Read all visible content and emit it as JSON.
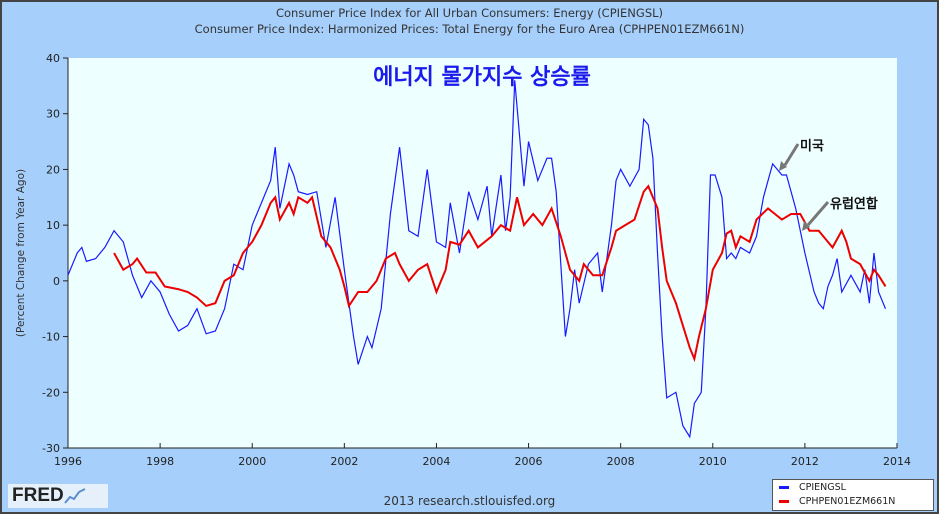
{
  "chart_data": {
    "type": "line",
    "title": "Consumer Price Index for All Urban Consumers: Energy (CPIENGSL)",
    "subtitle": "Consumer Price Index: Harmonized Prices: Total Energy for the Euro Area (CPHPEN01EZM661N)",
    "annotation_title": "에너지 물가지수 상승률",
    "ylabel": "(Percent Change from Year Ago)",
    "xlim": [
      1996,
      2014
    ],
    "ylim": [
      -30,
      40
    ],
    "xticks": [
      "1996",
      "1998",
      "2000",
      "2002",
      "2004",
      "2006",
      "2008",
      "2010",
      "2012",
      "2014"
    ],
    "yticks": [
      "40",
      "30",
      "20",
      "10",
      "0",
      "-10",
      "-20",
      "-30"
    ],
    "legend_position": "bottom-right",
    "series": [
      {
        "name": "CPIENGSL",
        "label": "미국",
        "color": "#1a1aff",
        "points": [
          [
            1996.0,
            1
          ],
          [
            1996.2,
            5
          ],
          [
            1996.3,
            6
          ],
          [
            1996.4,
            3.5
          ],
          [
            1996.6,
            4
          ],
          [
            1996.8,
            6
          ],
          [
            1997.0,
            9
          ],
          [
            1997.2,
            7
          ],
          [
            1997.4,
            1
          ],
          [
            1997.6,
            -3
          ],
          [
            1997.8,
            0
          ],
          [
            1998.0,
            -2
          ],
          [
            1998.2,
            -6
          ],
          [
            1998.4,
            -9
          ],
          [
            1998.6,
            -8
          ],
          [
            1998.8,
            -5
          ],
          [
            1999.0,
            -9.5
          ],
          [
            1999.2,
            -9
          ],
          [
            1999.4,
            -5
          ],
          [
            1999.6,
            3
          ],
          [
            1999.8,
            2
          ],
          [
            2000.0,
            10
          ],
          [
            2000.2,
            14
          ],
          [
            2000.4,
            18
          ],
          [
            2000.5,
            24
          ],
          [
            2000.6,
            13
          ],
          [
            2000.8,
            21
          ],
          [
            2000.9,
            19
          ],
          [
            2001.0,
            16
          ],
          [
            2001.2,
            15.5
          ],
          [
            2001.4,
            16
          ],
          [
            2001.6,
            6
          ],
          [
            2001.8,
            15
          ],
          [
            2002.0,
            2
          ],
          [
            2002.2,
            -10
          ],
          [
            2002.3,
            -15
          ],
          [
            2002.5,
            -10
          ],
          [
            2002.6,
            -12
          ],
          [
            2002.8,
            -5
          ],
          [
            2003.0,
            12
          ],
          [
            2003.2,
            24
          ],
          [
            2003.4,
            9
          ],
          [
            2003.6,
            8
          ],
          [
            2003.8,
            20
          ],
          [
            2004.0,
            7
          ],
          [
            2004.2,
            6
          ],
          [
            2004.3,
            14
          ],
          [
            2004.5,
            5
          ],
          [
            2004.7,
            16
          ],
          [
            2004.9,
            11
          ],
          [
            2005.1,
            17
          ],
          [
            2005.2,
            8
          ],
          [
            2005.4,
            19
          ],
          [
            2005.5,
            9
          ],
          [
            2005.6,
            15
          ],
          [
            2005.7,
            36
          ],
          [
            2005.9,
            17
          ],
          [
            2006.0,
            25
          ],
          [
            2006.2,
            18
          ],
          [
            2006.4,
            22
          ],
          [
            2006.5,
            22
          ],
          [
            2006.6,
            16
          ],
          [
            2006.8,
            -10
          ],
          [
            2006.9,
            -5
          ],
          [
            2007.0,
            2
          ],
          [
            2007.1,
            -4
          ],
          [
            2007.3,
            3
          ],
          [
            2007.5,
            5
          ],
          [
            2007.6,
            -2
          ],
          [
            2007.8,
            10
          ],
          [
            2007.9,
            18
          ],
          [
            2008.0,
            20
          ],
          [
            2008.2,
            17
          ],
          [
            2008.4,
            20
          ],
          [
            2008.5,
            29
          ],
          [
            2008.6,
            28
          ],
          [
            2008.7,
            22
          ],
          [
            2008.8,
            5
          ],
          [
            2008.9,
            -10
          ],
          [
            2009.0,
            -21
          ],
          [
            2009.2,
            -20
          ],
          [
            2009.35,
            -26
          ],
          [
            2009.5,
            -28
          ],
          [
            2009.6,
            -22
          ],
          [
            2009.75,
            -20
          ],
          [
            2009.85,
            -5
          ],
          [
            2009.95,
            19
          ],
          [
            2010.05,
            19
          ],
          [
            2010.2,
            15
          ],
          [
            2010.3,
            4
          ],
          [
            2010.4,
            5
          ],
          [
            2010.5,
            4
          ],
          [
            2010.6,
            6
          ],
          [
            2010.8,
            5
          ],
          [
            2010.95,
            8
          ],
          [
            2011.1,
            15
          ],
          [
            2011.3,
            21
          ],
          [
            2011.4,
            20
          ],
          [
            2011.5,
            19
          ],
          [
            2011.6,
            19
          ],
          [
            2011.8,
            13
          ],
          [
            2012.0,
            5
          ],
          [
            2012.2,
            -2
          ],
          [
            2012.3,
            -4
          ],
          [
            2012.4,
            -5
          ],
          [
            2012.5,
            -1
          ],
          [
            2012.6,
            1
          ],
          [
            2012.7,
            4
          ],
          [
            2012.8,
            -2
          ],
          [
            2013.0,
            1
          ],
          [
            2013.2,
            -2
          ],
          [
            2013.3,
            2
          ],
          [
            2013.4,
            -4
          ],
          [
            2013.5,
            5
          ],
          [
            2013.6,
            -2
          ],
          [
            2013.7,
            -4
          ],
          [
            2013.75,
            -5
          ]
        ]
      },
      {
        "name": "CPHPEN01EZM661N",
        "label": "유럽연합",
        "color": "#ee0000",
        "points": [
          [
            1997.0,
            5
          ],
          [
            1997.2,
            2
          ],
          [
            1997.4,
            3
          ],
          [
            1997.5,
            4
          ],
          [
            1997.7,
            1.5
          ],
          [
            1997.9,
            1.5
          ],
          [
            1998.1,
            -1
          ],
          [
            1998.4,
            -1.5
          ],
          [
            1998.6,
            -2
          ],
          [
            1998.8,
            -3
          ],
          [
            1999.0,
            -4.5
          ],
          [
            1999.2,
            -4
          ],
          [
            1999.4,
            0
          ],
          [
            1999.6,
            1
          ],
          [
            1999.8,
            5
          ],
          [
            2000.0,
            7
          ],
          [
            2000.2,
            10
          ],
          [
            2000.4,
            14
          ],
          [
            2000.5,
            15
          ],
          [
            2000.6,
            11
          ],
          [
            2000.8,
            14
          ],
          [
            2000.9,
            12
          ],
          [
            2001.0,
            15
          ],
          [
            2001.2,
            14
          ],
          [
            2001.3,
            15
          ],
          [
            2001.5,
            8
          ],
          [
            2001.7,
            6
          ],
          [
            2001.9,
            2
          ],
          [
            2002.0,
            -1
          ],
          [
            2002.1,
            -4.5
          ],
          [
            2002.3,
            -2
          ],
          [
            2002.5,
            -2
          ],
          [
            2002.7,
            0
          ],
          [
            2002.9,
            4
          ],
          [
            2003.1,
            5
          ],
          [
            2003.2,
            3
          ],
          [
            2003.4,
            0
          ],
          [
            2003.6,
            2
          ],
          [
            2003.8,
            3
          ],
          [
            2004.0,
            -2
          ],
          [
            2004.2,
            2
          ],
          [
            2004.3,
            7
          ],
          [
            2004.5,
            6.5
          ],
          [
            2004.7,
            9
          ],
          [
            2004.9,
            6
          ],
          [
            2005.2,
            8
          ],
          [
            2005.4,
            10
          ],
          [
            2005.6,
            9
          ],
          [
            2005.75,
            15
          ],
          [
            2005.9,
            10
          ],
          [
            2006.1,
            12
          ],
          [
            2006.3,
            10
          ],
          [
            2006.5,
            13
          ],
          [
            2006.7,
            8
          ],
          [
            2006.9,
            2
          ],
          [
            2007.1,
            0
          ],
          [
            2007.2,
            3
          ],
          [
            2007.4,
            1
          ],
          [
            2007.6,
            1
          ],
          [
            2007.8,
            6
          ],
          [
            2007.9,
            9
          ],
          [
            2008.1,
            10
          ],
          [
            2008.3,
            11
          ],
          [
            2008.5,
            16
          ],
          [
            2008.6,
            17
          ],
          [
            2008.8,
            13
          ],
          [
            2008.9,
            6
          ],
          [
            2009.0,
            0
          ],
          [
            2009.2,
            -4
          ],
          [
            2009.35,
            -8
          ],
          [
            2009.5,
            -12
          ],
          [
            2009.6,
            -14
          ],
          [
            2009.7,
            -10
          ],
          [
            2009.85,
            -5
          ],
          [
            2010.0,
            2
          ],
          [
            2010.2,
            5
          ],
          [
            2010.3,
            8.5
          ],
          [
            2010.4,
            9
          ],
          [
            2010.5,
            6
          ],
          [
            2010.6,
            8
          ],
          [
            2010.8,
            7
          ],
          [
            2010.95,
            11
          ],
          [
            2011.2,
            13
          ],
          [
            2011.35,
            12
          ],
          [
            2011.5,
            11
          ],
          [
            2011.7,
            12
          ],
          [
            2011.9,
            12
          ],
          [
            2012.1,
            9
          ],
          [
            2012.3,
            9
          ],
          [
            2012.5,
            7
          ],
          [
            2012.6,
            6
          ],
          [
            2012.8,
            9
          ],
          [
            2012.9,
            7
          ],
          [
            2013.0,
            4
          ],
          [
            2013.2,
            3
          ],
          [
            2013.4,
            0
          ],
          [
            2013.5,
            2
          ],
          [
            2013.6,
            1
          ],
          [
            2013.75,
            -1
          ]
        ]
      }
    ]
  },
  "footer": {
    "logo": "FRED",
    "credit": "2013 research.stlouisfed.org"
  }
}
